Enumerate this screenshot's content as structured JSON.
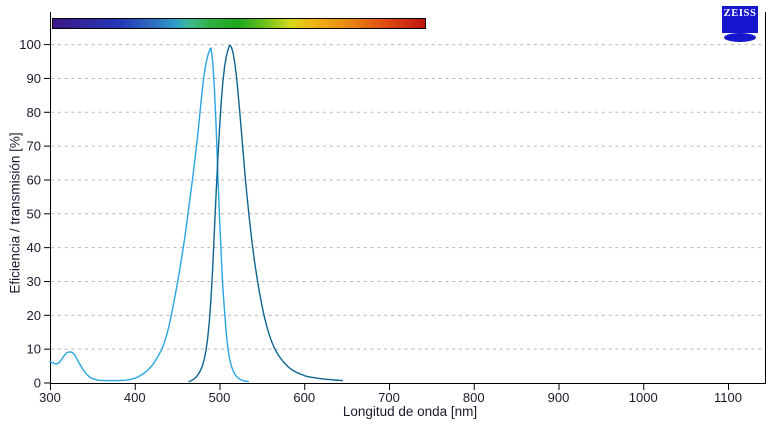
{
  "brand": {
    "logo_text": "ZEISS",
    "logo_color": "#1616cf"
  },
  "colors": {
    "background": "#ffffff",
    "axis": "#000000",
    "gridline": "#b8b8b8",
    "tick_label": "#1a1a2e",
    "excitation_curve": "#29a5e2",
    "emission_curve": "#0e6490"
  },
  "chart_data": {
    "type": "line",
    "title": "",
    "xlabel": "Longitud de onda [nm]",
    "ylabel": "Eficiencia / transmisión [%]",
    "xlim": [
      300,
      1143
    ],
    "ylim": [
      0,
      100
    ],
    "x_ticks": [
      300,
      400,
      500,
      600,
      700,
      800,
      900,
      1000,
      1100
    ],
    "y_ticks": [
      0,
      10,
      20,
      30,
      40,
      50,
      60,
      70,
      80,
      90,
      100
    ],
    "grid": "horizontal-dashed",
    "legend_position": "none",
    "series": [
      {
        "id": "excitation-spectrum",
        "color": "#29a5e2",
        "peak_nm": 490,
        "peak_pct": 99,
        "points": [
          [
            300,
            6.3
          ],
          [
            302,
            6.1
          ],
          [
            305,
            5.8
          ],
          [
            308,
            5.6
          ],
          [
            311,
            6.1
          ],
          [
            314,
            7.1
          ],
          [
            317,
            8.2
          ],
          [
            320,
            9.0
          ],
          [
            323,
            9.2
          ],
          [
            326,
            9.1
          ],
          [
            329,
            8.4
          ],
          [
            332,
            7.0
          ],
          [
            335,
            5.6
          ],
          [
            338,
            4.3
          ],
          [
            341,
            3.3
          ],
          [
            344,
            2.4
          ],
          [
            347,
            1.7
          ],
          [
            350,
            1.3
          ],
          [
            354,
            1.0
          ],
          [
            358,
            0.8
          ],
          [
            364,
            0.7
          ],
          [
            372,
            0.7
          ],
          [
            380,
            0.7
          ],
          [
            388,
            0.8
          ],
          [
            394,
            1.0
          ],
          [
            400,
            1.4
          ],
          [
            404,
            1.8
          ],
          [
            408,
            2.4
          ],
          [
            412,
            3.1
          ],
          [
            416,
            4.0
          ],
          [
            420,
            5.0
          ],
          [
            424,
            6.5
          ],
          [
            428,
            8.2
          ],
          [
            432,
            10.0
          ],
          [
            435,
            12.0
          ],
          [
            438,
            14.5
          ],
          [
            441,
            17.5
          ],
          [
            444,
            21.0
          ],
          [
            447,
            25.0
          ],
          [
            450,
            29.0
          ],
          [
            453,
            33.5
          ],
          [
            456,
            38.0
          ],
          [
            459,
            43.0
          ],
          [
            462,
            48.5
          ],
          [
            465,
            54.0
          ],
          [
            468,
            60.0
          ],
          [
            471,
            66.0
          ],
          [
            474,
            72.5
          ],
          [
            477,
            80.0
          ],
          [
            479,
            85.0
          ],
          [
            481,
            89.5
          ],
          [
            483,
            93.0
          ],
          [
            485,
            95.5
          ],
          [
            487,
            97.5
          ],
          [
            489,
            98.8
          ],
          [
            490,
            99.0
          ],
          [
            492,
            95.0
          ],
          [
            494,
            87.0
          ],
          [
            496,
            76.0
          ],
          [
            498,
            62.0
          ],
          [
            500,
            49.0
          ],
          [
            502,
            38.0
          ],
          [
            504,
            28.0
          ],
          [
            506,
            21.0
          ],
          [
            508,
            14.5
          ],
          [
            510,
            10.0
          ],
          [
            512,
            7.0
          ],
          [
            514,
            5.0
          ],
          [
            516,
            3.6
          ],
          [
            518,
            2.6
          ],
          [
            520,
            1.9
          ],
          [
            523,
            1.3
          ],
          [
            526,
            0.9
          ],
          [
            530,
            0.6
          ],
          [
            534,
            0.4
          ]
        ]
      },
      {
        "id": "emission-spectrum",
        "color": "#0e6490",
        "peak_nm": 512,
        "peak_pct": 100,
        "points": [
          [
            464,
            0.4
          ],
          [
            467,
            0.7
          ],
          [
            470,
            1.2
          ],
          [
            473,
            1.9
          ],
          [
            476,
            3.0
          ],
          [
            478,
            4.0
          ],
          [
            480,
            5.3
          ],
          [
            482,
            7.0
          ],
          [
            484,
            9.5
          ],
          [
            486,
            13.0
          ],
          [
            488,
            18.0
          ],
          [
            490,
            25.0
          ],
          [
            492,
            34.0
          ],
          [
            494,
            45.0
          ],
          [
            496,
            56.0
          ],
          [
            498,
            66.0
          ],
          [
            500,
            75.0
          ],
          [
            502,
            83.0
          ],
          [
            504,
            89.0
          ],
          [
            506,
            93.5
          ],
          [
            508,
            96.5
          ],
          [
            510,
            98.5
          ],
          [
            512,
            99.8
          ],
          [
            514,
            99.3
          ],
          [
            516,
            97.5
          ],
          [
            518,
            94.5
          ],
          [
            520,
            90.5
          ],
          [
            522,
            85.5
          ],
          [
            524,
            80.0
          ],
          [
            526,
            74.0
          ],
          [
            528,
            68.0
          ],
          [
            530,
            62.0
          ],
          [
            532,
            56.5
          ],
          [
            535,
            49.0
          ],
          [
            538,
            42.5
          ],
          [
            541,
            36.5
          ],
          [
            544,
            31.5
          ],
          [
            547,
            27.0
          ],
          [
            550,
            23.0
          ],
          [
            553,
            19.5
          ],
          [
            556,
            16.5
          ],
          [
            559,
            14.0
          ],
          [
            562,
            12.0
          ],
          [
            565,
            10.2
          ],
          [
            569,
            8.4
          ],
          [
            573,
            7.0
          ],
          [
            577,
            5.8
          ],
          [
            581,
            4.8
          ],
          [
            585,
            4.0
          ],
          [
            589,
            3.4
          ],
          [
            593,
            2.9
          ],
          [
            597,
            2.5
          ],
          [
            601,
            2.1
          ],
          [
            606,
            1.8
          ],
          [
            611,
            1.6
          ],
          [
            616,
            1.4
          ],
          [
            621,
            1.25
          ],
          [
            626,
            1.1
          ],
          [
            631,
            1.0
          ],
          [
            636,
            0.9
          ],
          [
            641,
            0.8
          ],
          [
            645,
            0.7
          ]
        ]
      }
    ],
    "spectrum_bar": {
      "wavelength_range_nm": [
        302,
        742
      ],
      "gradient_stops": [
        [
          "#3e1788",
          0
        ],
        [
          "#31269e",
          8
        ],
        [
          "#2438b8",
          18
        ],
        [
          "#2f74c0",
          28
        ],
        [
          "#2e9ec7",
          33
        ],
        [
          "#3eb98e",
          37
        ],
        [
          "#2eb144",
          42
        ],
        [
          "#1ca81c",
          50
        ],
        [
          "#7cc41c",
          58
        ],
        [
          "#d8d81c",
          64
        ],
        [
          "#f0b414",
          70
        ],
        [
          "#e88414",
          80
        ],
        [
          "#dc4810",
          90
        ],
        [
          "#c01410",
          100
        ]
      ]
    }
  }
}
